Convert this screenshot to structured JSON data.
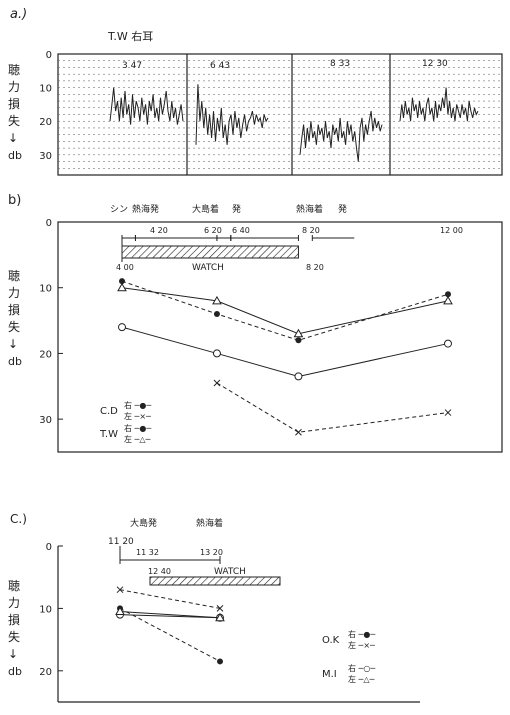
{
  "labels": {
    "ylabel_chars": [
      "聴",
      "力",
      "損",
      "失",
      "↓",
      "db"
    ],
    "panel_a": "a.)",
    "panel_b": "b)",
    "panel_c": "C.)",
    "watch": "WATCH"
  },
  "chart_data": [
    {
      "panel": "a",
      "type": "line",
      "subject": "T.W 右耳",
      "yticks": [
        "0",
        "10",
        "20",
        "30"
      ],
      "ylim": [
        0,
        36
      ],
      "inverted_y": true,
      "grid": true,
      "segments": [
        {
          "label": "3 47",
          "x": [
            0,
            1,
            2,
            3,
            4,
            5,
            6,
            7,
            8,
            9,
            10,
            11,
            12,
            13,
            14,
            15,
            16,
            17,
            18,
            19,
            20,
            21,
            22,
            23,
            24,
            25,
            26,
            27,
            28,
            29,
            30,
            31,
            32,
            33,
            34,
            35,
            36,
            37,
            38,
            39
          ],
          "values": [
            20,
            15,
            10,
            17,
            14,
            20,
            13,
            19,
            11,
            18,
            15,
            21,
            12,
            19,
            14,
            16,
            20,
            13,
            18,
            15,
            21,
            14,
            17,
            12,
            19,
            16,
            20,
            13,
            18,
            15,
            11,
            17,
            20,
            14,
            19,
            16,
            21,
            18,
            15,
            20
          ]
        },
        {
          "label": "6 43",
          "x": [
            0,
            1,
            2,
            3,
            4,
            5,
            6,
            7,
            8,
            9,
            10,
            11,
            12,
            13,
            14,
            15,
            16,
            17,
            18,
            19,
            20,
            21,
            22,
            23,
            24,
            25,
            26,
            27,
            28,
            29,
            30,
            31,
            32,
            33,
            34,
            35,
            36,
            37
          ],
          "values": [
            27,
            9,
            20,
            14,
            22,
            16,
            24,
            18,
            25,
            17,
            26,
            19,
            23,
            16,
            25,
            21,
            27,
            20,
            18,
            24,
            17,
            22,
            19,
            25,
            21,
            18,
            23,
            20,
            19,
            17,
            21,
            18,
            20,
            19,
            22,
            18,
            20,
            19
          ]
        },
        {
          "label": "8 33",
          "x": [
            0,
            1,
            2,
            3,
            4,
            5,
            6,
            7,
            8,
            9,
            10,
            11,
            12,
            13,
            14,
            15,
            16,
            17,
            18,
            19,
            20,
            21,
            22,
            23,
            24,
            25,
            26,
            27,
            28,
            29,
            30,
            31,
            32,
            33,
            34,
            35,
            36,
            37,
            38,
            39,
            40,
            41,
            42,
            43,
            44,
            45
          ],
          "values": [
            30,
            25,
            21,
            28,
            22,
            26,
            20,
            25,
            23,
            27,
            21,
            24,
            22,
            26,
            20,
            25,
            23,
            28,
            21,
            24,
            22,
            26,
            19,
            25,
            23,
            27,
            20,
            24,
            21,
            26,
            23,
            28,
            32,
            22,
            19,
            26,
            21,
            24,
            20,
            17,
            23,
            19,
            22,
            20,
            23,
            21
          ]
        },
        {
          "label": "12 30",
          "x": [
            0,
            1,
            2,
            3,
            4,
            5,
            6,
            7,
            8,
            9,
            10,
            11,
            12,
            13,
            14,
            15,
            16,
            17,
            18,
            19,
            20,
            21,
            22,
            23,
            24,
            25,
            26,
            27,
            28,
            29,
            30,
            31,
            32,
            33,
            34,
            35,
            36,
            37,
            38,
            39,
            40,
            41,
            42,
            43,
            44
          ],
          "values": [
            20,
            15,
            19,
            14,
            18,
            16,
            20,
            13,
            17,
            15,
            19,
            14,
            18,
            16,
            20,
            15,
            13,
            18,
            16,
            20,
            14,
            19,
            15,
            17,
            13,
            16,
            10,
            18,
            14,
            19,
            16,
            20,
            15,
            17,
            19,
            15,
            18,
            16,
            20,
            14,
            17,
            19,
            16,
            18,
            17
          ]
        }
      ]
    },
    {
      "panel": "b",
      "type": "line",
      "yticks": [
        "0",
        "10",
        "20",
        "30"
      ],
      "ylim": [
        0,
        35
      ],
      "inverted_y": true,
      "timeline": {
        "events": [
          {
            "label": "シン",
            "x": 4.0
          },
          {
            "label": "熱海発",
            "x": 4.33
          },
          {
            "label": "大島着",
            "x": 6.33
          },
          {
            "label": "発",
            "x": 6.67
          },
          {
            "label": "熱海着",
            "x": 8.33
          },
          {
            "label": "発",
            "x": 8.67
          }
        ],
        "interval_labels": [
          "4 20",
          "6 20",
          "6 40",
          "8 20",
          "12 00"
        ],
        "watch_bar": {
          "start_label": "4 00",
          "end_label": "8 20",
          "start": 4.0,
          "end": 8.33
        }
      },
      "legend": [
        {
          "name": "C.D",
          "right": "右 ─●─",
          "left": "左 ─×─"
        },
        {
          "name": "T.W",
          "right": "右 ─●─",
          "left": "左 ─△─"
        }
      ],
      "x": [
        4.0,
        6.33,
        8.33,
        12.0
      ],
      "series": [
        {
          "key": "cd_right",
          "marker": "dot",
          "style": "dashed",
          "values": [
            9,
            14,
            18,
            11
          ]
        },
        {
          "key": "cd_left",
          "marker": "x",
          "style": "dashed",
          "values": [
            null,
            24.5,
            32,
            29
          ]
        },
        {
          "key": "tw_right",
          "marker": "circle",
          "style": "solid",
          "values": [
            16,
            20,
            23.5,
            18.5
          ]
        },
        {
          "key": "tw_left",
          "marker": "triangle",
          "style": "solid",
          "values": [
            10,
            12,
            17,
            12
          ]
        }
      ]
    },
    {
      "panel": "c",
      "type": "line",
      "yticks": [
        "0",
        "10",
        "20"
      ],
      "ylim": [
        0,
        25
      ],
      "inverted_y": true,
      "timeline": {
        "events": [
          {
            "label": "11 20",
            "x": 11.33
          },
          {
            "label": "大島発",
            "x": 11.4
          },
          {
            "label": "熱海着",
            "x": 13.5
          }
        ],
        "interval_labels": [
          "11 32",
          "13 20",
          "12 40"
        ],
        "watch_bar": {
          "start_label": "12 40",
          "end_label": "",
          "start": 11.65,
          "end": 16.2
        }
      },
      "legend": [
        {
          "name": "O.K",
          "right": "右 ─●─",
          "left": "左 ─×─"
        },
        {
          "name": "M.I",
          "right": "右 ─○─",
          "left": "左 ─△─"
        }
      ],
      "x": [
        11.33,
        13.5
      ],
      "series": [
        {
          "key": "ok_right",
          "marker": "dot",
          "style": "dashed",
          "values": [
            10,
            18.5
          ]
        },
        {
          "key": "ok_left",
          "marker": "x",
          "style": "dashed",
          "values": [
            7,
            10
          ]
        },
        {
          "key": "mi_right",
          "marker": "circle",
          "style": "solid",
          "values": [
            11,
            11.5
          ]
        },
        {
          "key": "mi_left",
          "marker": "triangle",
          "style": "solid",
          "values": [
            10.5,
            11.5
          ]
        }
      ]
    }
  ]
}
